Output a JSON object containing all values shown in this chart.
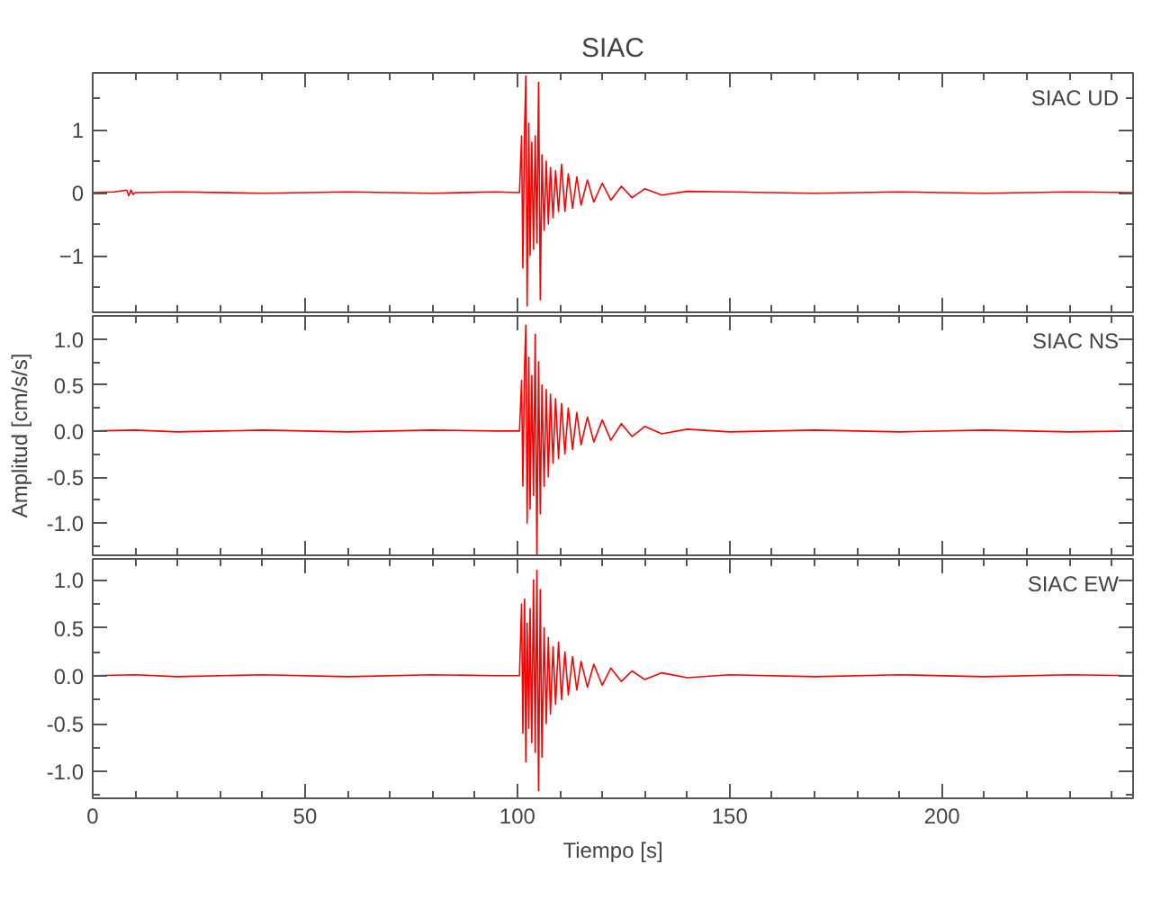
{
  "chart_data": [
    {
      "type": "line",
      "title": "SIAC",
      "annotations": [
        "SIAC UD"
      ],
      "xlim": [
        0,
        245
      ],
      "xticks": [
        0,
        50,
        100,
        150,
        200
      ],
      "ylim": [
        -1.9,
        1.9
      ],
      "yticks": [
        -1,
        0,
        1
      ],
      "tick_labels": "y",
      "series": [
        {
          "color": "#ff0000",
          "x": [
            0,
            5,
            8,
            8.5,
            9,
            9.5,
            10,
            20,
            40,
            60,
            80,
            95,
            100.5,
            101,
            101.3,
            101.7,
            102,
            102.3,
            102.7,
            103,
            103.4,
            103.8,
            104.2,
            104.6,
            105,
            105.4,
            105.8,
            106.3,
            106.8,
            107.3,
            107.8,
            108.4,
            109,
            109.7,
            110.4,
            111.2,
            112,
            113,
            114,
            115,
            116.5,
            118,
            120,
            122,
            124.5,
            127,
            130,
            134,
            140,
            150,
            170,
            190,
            210,
            230,
            245
          ],
          "values": [
            0,
            0.01,
            0.04,
            -0.05,
            0.04,
            -0.03,
            0,
            0.01,
            -0.01,
            0.01,
            -0.01,
            0.01,
            0,
            0.9,
            -1.2,
            1.0,
            1.85,
            -1.8,
            1.1,
            -1.0,
            0.8,
            -0.9,
            0.9,
            -0.8,
            1.75,
            -1.7,
            0.6,
            -0.6,
            0.5,
            -0.5,
            0.4,
            -0.4,
            0.35,
            -0.3,
            0.45,
            -0.3,
            0.3,
            -0.25,
            0.25,
            -0.2,
            0.2,
            -0.15,
            0.15,
            -0.12,
            0.1,
            -0.08,
            0.06,
            -0.04,
            0.02,
            0.01,
            -0.01,
            0.01,
            -0.01,
            0.01,
            0
          ]
        }
      ]
    },
    {
      "type": "line",
      "ylabel": "Amplitud [cm/s/s]",
      "annotations": [
        "SIAC NS"
      ],
      "xlim": [
        0,
        245
      ],
      "xticks": [
        0,
        50,
        100,
        150,
        200
      ],
      "ylim": [
        -1.35,
        1.25
      ],
      "yticks": [
        {
          "value": -1,
          "label": "-1.0"
        },
        {
          "value": -0.5,
          "label": "-0.5"
        },
        {
          "value": 0,
          "label": "0.0"
        },
        {
          "value": 0.5,
          "label": "0.5"
        },
        {
          "value": 1,
          "label": "1.0"
        }
      ],
      "tick_labels": "y",
      "series": [
        {
          "color": "#ff0000",
          "x": [
            0,
            10,
            20,
            40,
            60,
            80,
            95,
            100.5,
            101,
            101.3,
            101.7,
            102,
            102.3,
            102.7,
            103,
            103.4,
            103.8,
            104.2,
            104.6,
            105,
            105.4,
            105.8,
            106.3,
            106.8,
            107.3,
            107.8,
            108.4,
            109,
            109.7,
            110.4,
            111.2,
            112,
            113,
            114,
            115,
            116.5,
            118,
            120,
            122,
            124.5,
            127,
            130,
            134,
            140,
            150,
            170,
            190,
            210,
            230,
            245
          ],
          "values": [
            0,
            0.01,
            -0.01,
            0.01,
            -0.01,
            0.01,
            0,
            0,
            0.55,
            -0.6,
            0.7,
            1.15,
            -1.0,
            0.8,
            -0.85,
            0.6,
            -0.7,
            1.05,
            -1.35,
            0.75,
            -0.9,
            0.5,
            -0.6,
            0.45,
            -0.5,
            0.4,
            -0.35,
            0.35,
            -0.3,
            0.3,
            -0.25,
            0.25,
            -0.2,
            0.2,
            -0.15,
            0.15,
            -0.12,
            0.12,
            -0.1,
            0.08,
            -0.06,
            0.05,
            -0.03,
            0.02,
            -0.01,
            0.01,
            -0.01,
            0.01,
            -0.01,
            0
          ]
        }
      ]
    },
    {
      "type": "line",
      "xlabel": "Tiempo [s]",
      "annotations": [
        "SIAC EW"
      ],
      "xlim": [
        0,
        245
      ],
      "xticks": [
        0,
        50,
        100,
        150,
        200
      ],
      "ylim": [
        -1.28,
        1.22
      ],
      "yticks": [
        {
          "value": -1,
          "label": "-1.0"
        },
        {
          "value": -0.5,
          "label": "-0.5"
        },
        {
          "value": 0,
          "label": "0.0"
        },
        {
          "value": 0.5,
          "label": "0.5"
        },
        {
          "value": 1,
          "label": "1.0"
        }
      ],
      "series": [
        {
          "color": "#ff0000",
          "x": [
            0,
            10,
            20,
            40,
            60,
            80,
            95,
            100.5,
            101,
            101.3,
            101.7,
            102,
            102.3,
            102.7,
            103,
            103.4,
            103.8,
            104.2,
            104.6,
            105,
            105.4,
            105.8,
            106.3,
            106.8,
            107.3,
            107.8,
            108.4,
            109,
            109.7,
            110.4,
            111.2,
            112,
            113,
            114,
            115,
            116.5,
            118,
            120,
            122,
            124.5,
            127,
            130,
            134,
            140,
            150,
            170,
            190,
            210,
            230,
            245
          ],
          "values": [
            0,
            0.01,
            -0.01,
            0.01,
            -0.01,
            0.01,
            0,
            0,
            0.75,
            -0.6,
            0.8,
            -0.9,
            0.55,
            -0.55,
            0.7,
            -0.7,
            1.0,
            -0.8,
            1.1,
            -1.2,
            0.9,
            -0.85,
            0.5,
            -0.5,
            0.4,
            -0.4,
            0.3,
            -0.3,
            0.35,
            -0.25,
            0.25,
            -0.2,
            0.2,
            -0.15,
            0.15,
            -0.12,
            0.12,
            -0.1,
            0.08,
            -0.06,
            0.05,
            -0.04,
            0.03,
            -0.02,
            0.01,
            -0.01,
            0.01,
            -0.01,
            0.01,
            0
          ]
        }
      ]
    }
  ]
}
